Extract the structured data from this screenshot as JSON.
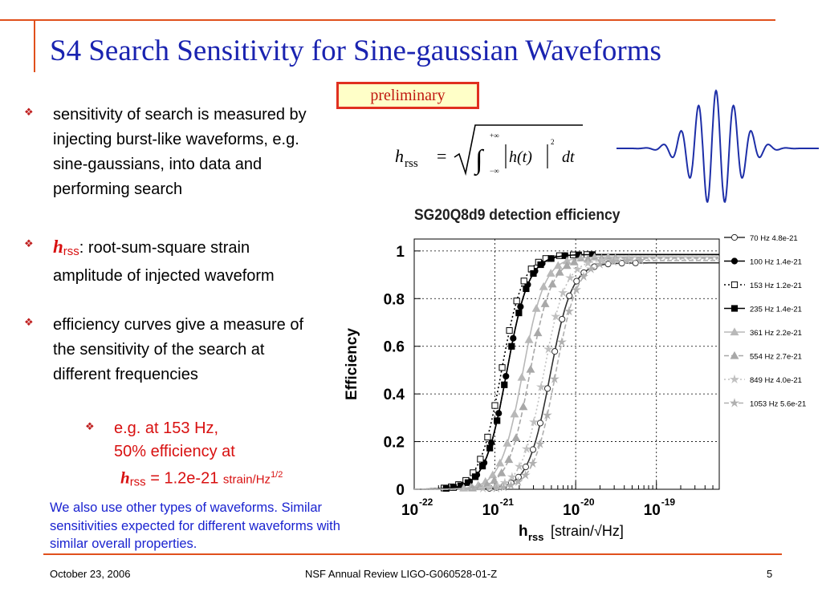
{
  "slide": {
    "title": "S4 Search Sensitivity for Sine-gaussian Waveforms",
    "preliminary_label": "preliminary",
    "bullets": [
      {
        "text": "sensitivity of search is measured by injecting burst-like waveforms, e.g. sine-gaussians, into data and performing search"
      },
      {
        "symbol": "h",
        "subscript": "rss",
        "text": ":  root-sum-square strain amplitude of injected waveform"
      },
      {
        "text": "efficiency curves give a measure of the sensitivity of the search at different frequencies"
      }
    ],
    "subbullet": {
      "line1": "e.g. at 153 Hz,",
      "line2": "50% efficiency at",
      "symbol": "h",
      "subscript": "rss",
      "value": " = 1.2e-21 ",
      "unit": "strain/Hz",
      "unit_exp": "1/2"
    },
    "note": "We also use other types of waveforms. Similar sensitivities expected for different waveforms with similar overall properties.",
    "formula": {
      "lhs": "h",
      "lhs_sub": "rss",
      "eq": "=",
      "upper": "+∞",
      "lower": "−∞",
      "integrand": "h(t)",
      "power": "2",
      "dt": "dt"
    },
    "footer": {
      "date": "October 23, 2006",
      "center": "NSF Annual Review  LIGO-G060528-01-Z",
      "page": "5"
    }
  },
  "chart_data": {
    "type": "line",
    "title": "SG20Q8d9 detection efficiency",
    "xlabel": "h",
    "xlabel_sub": "rss",
    "xlabel_unit": "[strain/√Hz]",
    "ylabel": "Efficiency",
    "x_scale": "log",
    "xlim": [
      1e-22,
      6e-19
    ],
    "ylim": [
      0,
      1.05
    ],
    "x_ticks": [
      {
        "base": "10",
        "exp": "-22",
        "value": 1e-22
      },
      {
        "base": "10",
        "exp": "-21",
        "value": 1e-21
      },
      {
        "base": "10",
        "exp": "-20",
        "value": 1e-20
      },
      {
        "base": "10",
        "exp": "-19",
        "value": 1e-19
      }
    ],
    "y_ticks": [
      {
        "label": "0",
        "value": 0
      },
      {
        "label": "0.2",
        "value": 0.2
      },
      {
        "label": "0.4",
        "value": 0.4
      },
      {
        "label": "0.6",
        "value": 0.6
      },
      {
        "label": "0.8",
        "value": 0.8
      },
      {
        "label": "1",
        "value": 1
      }
    ],
    "grid": true,
    "legend_position": "right",
    "series": [
      {
        "name": "70 Hz   4.8e-21",
        "h50": 4.8e-21,
        "max": 0.95,
        "color": "#303030",
        "dash": "",
        "marker": "circle-open"
      },
      {
        "name": "100 Hz   1.4e-21",
        "h50": 1.4e-21,
        "max": 0.985,
        "color": "#000000",
        "dash": "",
        "marker": "circle-filled"
      },
      {
        "name": "153 Hz   1.2e-21",
        "h50": 1.2e-21,
        "max": 0.985,
        "color": "#000000",
        "dash": "2,3",
        "marker": "square-open"
      },
      {
        "name": "235 Hz   1.4e-21",
        "h50": 1.4e-21,
        "max": 0.985,
        "color": "#000000",
        "dash": "",
        "marker": "square-filled"
      },
      {
        "name": "361 Hz   2.2e-21",
        "h50": 2.2e-21,
        "max": 0.975,
        "color": "#b8b8b8",
        "dash": "",
        "marker": "triangle"
      },
      {
        "name": "554 Hz   2.7e-21",
        "h50": 2.7e-21,
        "max": 0.97,
        "color": "#a8a8a8",
        "dash": "6,3",
        "marker": "triangle"
      },
      {
        "name": "849 Hz   4.0e-21",
        "h50": 4e-21,
        "max": 0.965,
        "color": "#c0c0c0",
        "dash": "2,3",
        "marker": "star"
      },
      {
        "name": "1053 Hz   5.6e-21",
        "h50": 5.6e-21,
        "max": 0.96,
        "color": "#b0b0b0",
        "dash": "6,3",
        "marker": "star"
      }
    ]
  }
}
